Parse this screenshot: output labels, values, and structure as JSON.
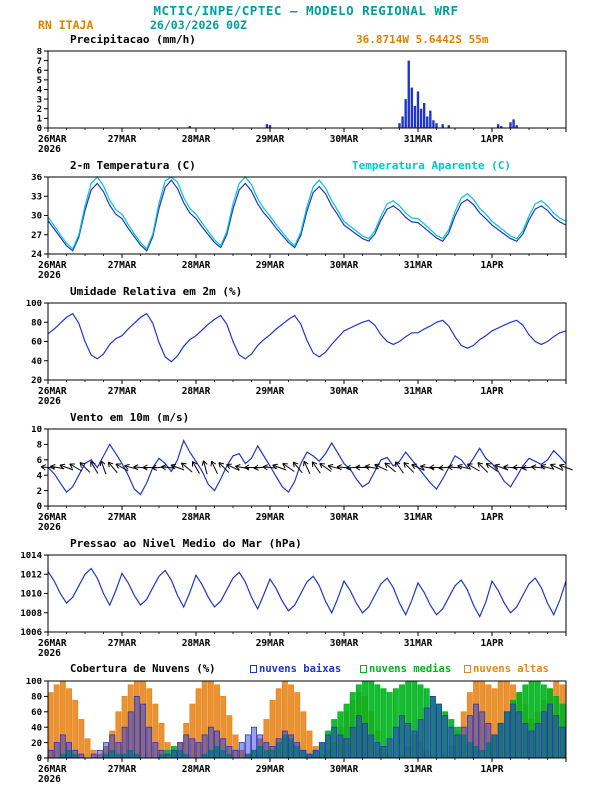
{
  "header": {
    "title": "MCTIC/INPE/CPTEC — MODELO REGIONAL WRF",
    "station": "RN ITAJA",
    "run": "26/03/2026 00Z"
  },
  "colors": {
    "title": "#009e9e",
    "accent-orange": "#e07f00",
    "line-blue": "#1f35cc",
    "line-cyan": "#00c8c8",
    "cloud-low": "#2233cc",
    "cloud-mid": "#00b41e",
    "cloud-high": "#e8871e",
    "axis": "#000000"
  },
  "x_axis": {
    "hours_total": 168,
    "tick_labels": [
      "26MAR",
      "27MAR",
      "28MAR",
      "29MAR",
      "30MAR",
      "31MAR",
      "1APR"
    ],
    "year_label": "2026"
  },
  "chart_data": [
    {
      "id": "precip",
      "type": "bar",
      "title": "Precipitacao (mm/h)",
      "right_label": "36.8714W 5.6442S 55m",
      "ylim": [
        0,
        8
      ],
      "yticks": [
        0,
        1,
        2,
        3,
        4,
        5,
        6,
        7,
        8
      ],
      "color": "#1f35cc",
      "points": [
        [
          46,
          0.2
        ],
        [
          71,
          0.4
        ],
        [
          72,
          0.3
        ],
        [
          114,
          0.5
        ],
        [
          115,
          1.2
        ],
        [
          116,
          3.0
        ],
        [
          117,
          7.0
        ],
        [
          118,
          4.2
        ],
        [
          119,
          2.3
        ],
        [
          120,
          3.8
        ],
        [
          121,
          2.0
        ],
        [
          122,
          2.6
        ],
        [
          123,
          1.2
        ],
        [
          124,
          1.8
        ],
        [
          125,
          0.8
        ],
        [
          126,
          0.5
        ],
        [
          128,
          0.4
        ],
        [
          130,
          0.3
        ],
        [
          146,
          0.4
        ],
        [
          147,
          0.2
        ],
        [
          150,
          0.6
        ],
        [
          151,
          0.9
        ],
        [
          152,
          0.3
        ]
      ]
    },
    {
      "id": "temp",
      "type": "line",
      "title": "2-m Temperatura (C)",
      "ylim": [
        24,
        36
      ],
      "yticks": [
        24,
        27,
        30,
        33,
        36
      ],
      "step_h": 2,
      "series": [
        {
          "name": "2-m Temperatura (C)",
          "color": "#1f35cc",
          "values": [
            29.2,
            27.9,
            26.6,
            25.3,
            24.5,
            26.6,
            30.8,
            34.0,
            35.0,
            33.7,
            31.6,
            30.2,
            29.5,
            28.0,
            26.7,
            25.4,
            24.5,
            26.7,
            31.1,
            34.4,
            35.5,
            34.2,
            32.0,
            30.4,
            29.5,
            28.2,
            27.0,
            25.8,
            25.0,
            27.0,
            31.0,
            34.0,
            35.0,
            33.8,
            31.8,
            30.4,
            29.3,
            28.0,
            26.9,
            25.8,
            25.0,
            26.9,
            30.7,
            33.6,
            34.5,
            33.4,
            31.5,
            30.1,
            28.5,
            27.8,
            27.1,
            26.4,
            26.0,
            27.1,
            29.3,
            31.0,
            31.5,
            30.8,
            29.7,
            29.0,
            28.9,
            28.1,
            27.3,
            26.5,
            26.0,
            27.3,
            29.9,
            31.9,
            32.5,
            31.7,
            30.4,
            29.5,
            28.5,
            27.8,
            27.1,
            26.4,
            26.0,
            27.1,
            29.3,
            31.0,
            31.5,
            30.8,
            29.7,
            29.0,
            28.5
          ]
        },
        {
          "name": "Temperatura Aparente (C)",
          "color": "#00c8c8",
          "values": [
            29.8,
            28.4,
            27.0,
            25.7,
            24.8,
            27.0,
            31.5,
            35.0,
            36.0,
            34.6,
            32.4,
            30.9,
            30.2,
            28.6,
            27.1,
            25.8,
            24.8,
            27.1,
            31.9,
            35.4,
            36.0,
            35.2,
            32.8,
            31.1,
            30.2,
            28.8,
            27.5,
            26.2,
            25.3,
            27.5,
            31.8,
            35.0,
            36.0,
            34.8,
            32.6,
            31.1,
            29.9,
            28.6,
            27.4,
            26.2,
            25.3,
            27.4,
            31.4,
            34.5,
            35.5,
            34.3,
            32.3,
            30.8,
            29.1,
            28.3,
            27.6,
            26.8,
            26.4,
            27.6,
            29.9,
            31.8,
            32.3,
            31.5,
            30.4,
            29.6,
            29.5,
            28.7,
            27.8,
            26.9,
            26.4,
            27.8,
            30.6,
            32.7,
            33.4,
            32.5,
            31.1,
            30.2,
            29.1,
            28.3,
            27.6,
            26.8,
            26.4,
            27.6,
            29.9,
            31.8,
            32.3,
            31.5,
            30.4,
            29.6,
            29.1
          ]
        }
      ]
    },
    {
      "id": "rh",
      "type": "line",
      "title": "Umidade Relativa em 2m (%)",
      "ylim": [
        20,
        100
      ],
      "yticks": [
        20,
        40,
        60,
        80,
        100
      ],
      "step_h": 2,
      "series": [
        {
          "name": "Umidade Relativa em 2m (%)",
          "color": "#1f35cc",
          "values": [
            68,
            73,
            79,
            85,
            89,
            79,
            60,
            46,
            42,
            47,
            57,
            63,
            66,
            73,
            79,
            85,
            89,
            79,
            59,
            44,
            39,
            45,
            55,
            62,
            66,
            72,
            78,
            83,
            87,
            78,
            60,
            46,
            42,
            47,
            56,
            62,
            67,
            73,
            78,
            83,
            87,
            78,
            61,
            48,
            44,
            49,
            57,
            64,
            71,
            74,
            77,
            80,
            82,
            77,
            67,
            60,
            57,
            60,
            65,
            69,
            69,
            73,
            76,
            80,
            82,
            76,
            65,
            56,
            53,
            56,
            62,
            66,
            71,
            74,
            77,
            80,
            82,
            77,
            67,
            60,
            57,
            60,
            65,
            69,
            71
          ]
        }
      ]
    },
    {
      "id": "wind",
      "type": "line",
      "title": "Vento em 10m (m/s)",
      "ylim": [
        0,
        10
      ],
      "yticks": [
        0,
        2,
        4,
        6,
        8,
        10
      ],
      "step_h": 2,
      "series": [
        {
          "name": "Vento em 10m (m/s)",
          "color": "#1f35cc",
          "values": [
            5.0,
            4.2,
            3.0,
            1.8,
            2.5,
            4.0,
            5.5,
            6.0,
            5.0,
            6.5,
            8.0,
            6.8,
            5.5,
            4.0,
            2.2,
            1.5,
            3.0,
            5.0,
            6.2,
            5.5,
            4.5,
            6.0,
            8.5,
            7.0,
            5.8,
            4.5,
            2.8,
            2.0,
            3.5,
            5.2,
            6.5,
            6.8,
            5.5,
            6.2,
            7.8,
            6.5,
            5.2,
            3.8,
            2.5,
            1.8,
            3.2,
            5.5,
            7.0,
            6.5,
            5.8,
            6.8,
            8.2,
            6.9,
            5.5,
            4.8,
            3.5,
            2.5,
            3.0,
            4.5,
            6.0,
            6.3,
            5.2,
            5.8,
            7.0,
            6.0,
            5.0,
            4.0,
            3.0,
            2.2,
            3.5,
            5.0,
            6.5,
            6.0,
            5.0,
            6.2,
            7.5,
            6.2,
            5.5,
            4.5,
            3.2,
            2.5,
            3.8,
            5.2,
            6.2,
            5.8,
            5.4,
            6.0,
            7.2,
            6.4,
            5.5
          ]
        }
      ],
      "barbs": {
        "step_h": 3,
        "y_value": 5,
        "directions": [
          95,
          100,
          110,
          120,
          135,
          150,
          160,
          140,
          120,
          105,
          95,
          90,
          85,
          95,
          110,
          130,
          150,
          165,
          155,
          135,
          115,
          100,
          90,
          85,
          95,
          110,
          125,
          140,
          155,
          145,
          125,
          105,
          95,
          85,
          90,
          100,
          115,
          130,
          145,
          135,
          115,
          100,
          90,
          85,
          95,
          105,
          120,
          135,
          125,
          110,
          95,
          90,
          85,
          95,
          105,
          115,
          110
        ]
      }
    },
    {
      "id": "pressure",
      "type": "line",
      "title": "Pressao ao Nivel Medio do Mar (hPa)",
      "ylim": [
        1006,
        1014
      ],
      "yticks": [
        1006,
        1008,
        1010,
        1012,
        1014
      ],
      "step_h": 2,
      "series": [
        {
          "name": "Pressao ao Nivel Medio do Mar (hPa)",
          "color": "#1f35cc",
          "values": [
            1012.3,
            1011.3,
            1010.0,
            1009.0,
            1009.6,
            1010.8,
            1012.0,
            1012.6,
            1011.6,
            1010.0,
            1008.8,
            1010.3,
            1012.1,
            1011.1,
            1009.8,
            1008.8,
            1009.4,
            1010.6,
            1011.8,
            1012.4,
            1011.4,
            1009.8,
            1008.6,
            1010.1,
            1011.9,
            1010.9,
            1009.6,
            1008.6,
            1009.2,
            1010.4,
            1011.6,
            1012.2,
            1011.2,
            1009.6,
            1008.4,
            1009.9,
            1011.5,
            1010.5,
            1009.2,
            1008.2,
            1008.8,
            1010.0,
            1011.2,
            1011.8,
            1010.8,
            1009.2,
            1008.0,
            1009.5,
            1011.3,
            1010.3,
            1009.0,
            1008.0,
            1008.6,
            1009.8,
            1011.0,
            1011.6,
            1010.6,
            1009.0,
            1007.8,
            1009.3,
            1011.1,
            1010.1,
            1008.8,
            1007.8,
            1008.4,
            1009.6,
            1010.8,
            1011.4,
            1010.4,
            1008.8,
            1007.6,
            1009.1,
            1011.3,
            1010.3,
            1009.0,
            1008.0,
            1008.6,
            1009.8,
            1011.0,
            1011.6,
            1010.6,
            1009.0,
            1007.8,
            1009.3,
            1011.3
          ]
        }
      ]
    },
    {
      "id": "clouds",
      "type": "cloudbars",
      "title": "Cobertura de Nuvens (%)",
      "ylim": [
        0,
        100
      ],
      "yticks": [
        0,
        20,
        40,
        60,
        80,
        100
      ],
      "step_h": 2,
      "series": [
        {
          "name": "nuvens baixas",
          "color": "#2233cc",
          "opacity": 0.45,
          "values": [
            10,
            20,
            30,
            20,
            10,
            5,
            0,
            5,
            10,
            20,
            30,
            20,
            40,
            60,
            80,
            70,
            40,
            20,
            10,
            5,
            10,
            20,
            30,
            25,
            20,
            30,
            40,
            35,
            25,
            15,
            10,
            20,
            30,
            40,
            30,
            20,
            15,
            25,
            35,
            30,
            20,
            10,
            5,
            10,
            20,
            30,
            40,
            30,
            25,
            40,
            55,
            45,
            30,
            20,
            15,
            25,
            40,
            55,
            45,
            35,
            50,
            65,
            80,
            70,
            55,
            40,
            30,
            40,
            55,
            70,
            60,
            45,
            30,
            45,
            60,
            70,
            60,
            45,
            35,
            45,
            60,
            70,
            55,
            40,
            35
          ]
        },
        {
          "name": "nuvens medias",
          "color": "#00b41e",
          "opacity": 0.9,
          "values": [
            0,
            0,
            5,
            10,
            5,
            0,
            0,
            0,
            0,
            5,
            10,
            5,
            5,
            10,
            5,
            0,
            0,
            0,
            5,
            10,
            15,
            10,
            5,
            0,
            0,
            5,
            10,
            15,
            10,
            5,
            0,
            0,
            5,
            10,
            15,
            10,
            10,
            20,
            30,
            25,
            15,
            10,
            5,
            10,
            20,
            35,
            50,
            60,
            70,
            85,
            95,
            100,
            100,
            95,
            90,
            85,
            90,
            95,
            100,
            100,
            95,
            90,
            80,
            70,
            60,
            50,
            40,
            30,
            20,
            15,
            10,
            20,
            30,
            45,
            60,
            75,
            85,
            95,
            100,
            100,
            95,
            90,
            80,
            70,
            60
          ]
        },
        {
          "name": "nuvens altas",
          "color": "#e8871e",
          "opacity": 0.9,
          "values": [
            85,
            95,
            100,
            90,
            75,
            50,
            25,
            10,
            5,
            15,
            35,
            60,
            80,
            95,
            100,
            100,
            90,
            70,
            45,
            20,
            10,
            20,
            45,
            70,
            90,
            100,
            100,
            95,
            80,
            55,
            30,
            10,
            5,
            10,
            25,
            50,
            75,
            90,
            100,
            95,
            85,
            60,
            35,
            15,
            5,
            10,
            20,
            40,
            60,
            75,
            85,
            80,
            60,
            35,
            15,
            5,
            0,
            5,
            15,
            30,
            20,
            10,
            5,
            0,
            5,
            15,
            35,
            60,
            85,
            100,
            100,
            95,
            90,
            100,
            100,
            95,
            85,
            70,
            50,
            60,
            75,
            90,
            100,
            95,
            85
          ]
        }
      ]
    }
  ]
}
